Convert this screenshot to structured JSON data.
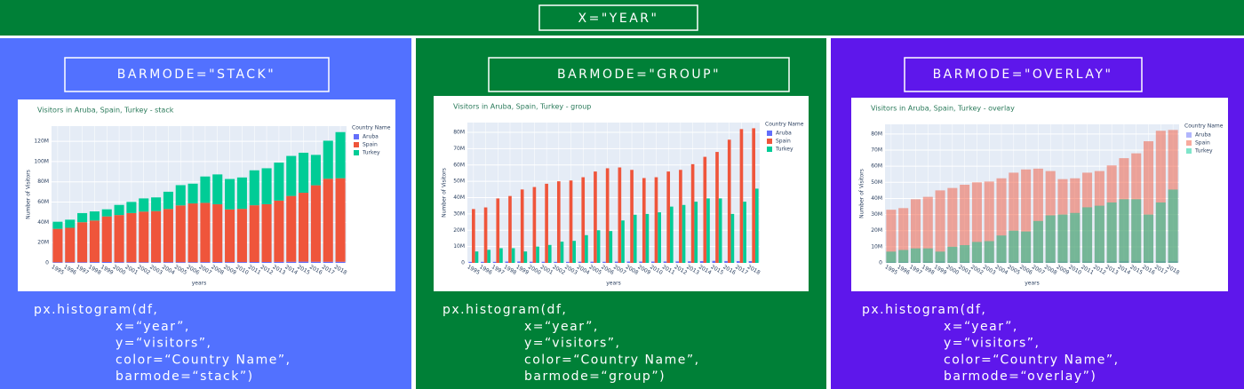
{
  "header": {
    "title": "X=\"YEAR\""
  },
  "panels": [
    {
      "title": "BARMODE=\"STACK\"",
      "code": [
        "px.histogram(df,",
        "x=“year”,",
        "y=“visitors”,",
        "color=“Country Name”,",
        "barmode=“stack”)"
      ]
    },
    {
      "title": "BARMODE=\"GROUP\"",
      "code": [
        "px.histogram(df,",
        "x=“year”,",
        "y=“visitors”,",
        "color=“Country Name”,",
        "barmode=“group”)"
      ]
    },
    {
      "title": "BARMODE=\"OVERLAY\"",
      "code": [
        "px.histogram(df,",
        "x=“year”,",
        "y=“visitors”,",
        "color=“Country Name”,",
        "barmode=“overlay”)"
      ]
    }
  ],
  "chart_data": [
    {
      "type": "bar",
      "barmode": "stack",
      "title": "Visitors in Aruba, Spain, Turkey - stack",
      "x_label": "years",
      "y_label": "Number of Visitors",
      "legend_title": "Country Name",
      "grid": true,
      "x": [
        1995,
        1996,
        1997,
        1998,
        1999,
        2000,
        2001,
        2002,
        2003,
        2004,
        2005,
        2006,
        2007,
        2008,
        2009,
        2010,
        2011,
        2012,
        2013,
        2014,
        2015,
        2016,
        2017,
        2018
      ],
      "xlim": [
        1994.5,
        2018.5
      ],
      "xticks": [
        1995,
        1996,
        1997,
        1998,
        1999,
        2000,
        2001,
        2002,
        2003,
        2004,
        2005,
        2006,
        2007,
        2008,
        2009,
        2010,
        2011,
        2012,
        2013,
        2014,
        2015,
        2016,
        2017,
        2018
      ],
      "ylim": [
        0,
        135000000
      ],
      "yticks": [
        0,
        {
          "value": 20000000,
          "label": "20M"
        },
        {
          "value": 40000000,
          "label": "40M"
        },
        {
          "value": 60000000,
          "label": "60M"
        },
        {
          "value": 80000000,
          "label": "80M"
        },
        {
          "value": 100000000,
          "label": "100M"
        },
        {
          "value": 120000000,
          "label": "120M"
        }
      ],
      "series": [
        {
          "name": "Aruba",
          "color": "#636efa",
          "values": [
            620000,
            640000,
            650000,
            810000,
            880000,
            720000,
            690000,
            640000,
            640000,
            730000,
            730000,
            690000,
            770000,
            830000,
            810000,
            820000,
            870000,
            900000,
            980000,
            1070000,
            1220000,
            1100000,
            1070000,
            1080000
          ]
        },
        {
          "name": "Spain",
          "color": "#ef553b",
          "values": [
            33000000,
            34000000,
            39500000,
            41000000,
            45000000,
            46500000,
            48500000,
            50000000,
            50500000,
            52500000,
            56000000,
            58000000,
            58500000,
            57000000,
            52000000,
            52500000,
            56000000,
            57000000,
            60500000,
            65000000,
            68000000,
            75500000,
            82000000,
            82500000
          ]
        },
        {
          "name": "Turkey",
          "color": "#00cc96",
          "values": [
            7000000,
            8000000,
            9000000,
            9000000,
            7000000,
            10000000,
            11000000,
            13000000,
            13500000,
            17000000,
            20000000,
            19500000,
            26000000,
            29500000,
            30000000,
            31000000,
            34500000,
            35500000,
            37500000,
            39500000,
            39500000,
            30000000,
            37500000,
            45500000
          ]
        }
      ]
    },
    {
      "type": "bar",
      "barmode": "group",
      "title": "Visitors in Aruba, Spain, Turkey - group",
      "x_label": "years",
      "y_label": "Number of Visitors",
      "legend_title": "Country Name",
      "grid": true,
      "x": [
        1995,
        1996,
        1997,
        1998,
        1999,
        2000,
        2001,
        2002,
        2003,
        2004,
        2005,
        2006,
        2007,
        2008,
        2009,
        2010,
        2011,
        2012,
        2013,
        2014,
        2015,
        2016,
        2017,
        2018
      ],
      "xlim": [
        1994.5,
        2018.5
      ],
      "xticks": [
        1995,
        1996,
        1997,
        1998,
        1999,
        2000,
        2001,
        2002,
        2003,
        2004,
        2005,
        2006,
        2007,
        2008,
        2009,
        2010,
        2011,
        2012,
        2013,
        2014,
        2015,
        2016,
        2017,
        2018
      ],
      "ylim": [
        0,
        86000000
      ],
      "yticks": [
        0,
        {
          "value": 10000000,
          "label": "10M"
        },
        {
          "value": 20000000,
          "label": "20M"
        },
        {
          "value": 30000000,
          "label": "30M"
        },
        {
          "value": 40000000,
          "label": "40M"
        },
        {
          "value": 50000000,
          "label": "50M"
        },
        {
          "value": 60000000,
          "label": "60M"
        },
        {
          "value": 70000000,
          "label": "70M"
        },
        {
          "value": 80000000,
          "label": "80M"
        }
      ],
      "series": [
        {
          "name": "Aruba",
          "color": "#636efa",
          "values": [
            620000,
            640000,
            650000,
            810000,
            880000,
            720000,
            690000,
            640000,
            640000,
            730000,
            730000,
            690000,
            770000,
            830000,
            810000,
            820000,
            870000,
            900000,
            980000,
            1070000,
            1220000,
            1100000,
            1070000,
            1080000
          ]
        },
        {
          "name": "Spain",
          "color": "#ef553b",
          "values": [
            33000000,
            34000000,
            39500000,
            41000000,
            45000000,
            46500000,
            48500000,
            50000000,
            50500000,
            52500000,
            56000000,
            58000000,
            58500000,
            57000000,
            52000000,
            52500000,
            56000000,
            57000000,
            60500000,
            65000000,
            68000000,
            75500000,
            82000000,
            82500000
          ]
        },
        {
          "name": "Turkey",
          "color": "#00cc96",
          "values": [
            7000000,
            8000000,
            9000000,
            9000000,
            7000000,
            10000000,
            11000000,
            13000000,
            13500000,
            17000000,
            20000000,
            19500000,
            26000000,
            29500000,
            30000000,
            31000000,
            34500000,
            35500000,
            37500000,
            39500000,
            39500000,
            30000000,
            37500000,
            45500000
          ]
        }
      ]
    },
    {
      "type": "bar",
      "barmode": "overlay",
      "opacity": 0.5,
      "title": "Visitors in Aruba, Spain, Turkey - overlay",
      "x_label": "years",
      "y_label": "Number of Visitors",
      "legend_title": "Country Name",
      "grid": true,
      "x": [
        1995,
        1996,
        1997,
        1998,
        1999,
        2000,
        2001,
        2002,
        2003,
        2004,
        2005,
        2006,
        2007,
        2008,
        2009,
        2010,
        2011,
        2012,
        2013,
        2014,
        2015,
        2016,
        2017,
        2018
      ],
      "xlim": [
        1994.5,
        2018.5
      ],
      "xticks": [
        1995,
        1996,
        1997,
        1998,
        1999,
        2000,
        2001,
        2002,
        2003,
        2004,
        2005,
        2006,
        2007,
        2008,
        2009,
        2010,
        2011,
        2012,
        2013,
        2014,
        2015,
        2016,
        2017,
        2018
      ],
      "ylim": [
        0,
        86000000
      ],
      "yticks": [
        0,
        {
          "value": 10000000,
          "label": "10M"
        },
        {
          "value": 20000000,
          "label": "20M"
        },
        {
          "value": 30000000,
          "label": "30M"
        },
        {
          "value": 40000000,
          "label": "40M"
        },
        {
          "value": 50000000,
          "label": "50M"
        },
        {
          "value": 60000000,
          "label": "60M"
        },
        {
          "value": 70000000,
          "label": "70M"
        },
        {
          "value": 80000000,
          "label": "80M"
        }
      ],
      "series": [
        {
          "name": "Aruba",
          "color": "#636efa",
          "values": [
            620000,
            640000,
            650000,
            810000,
            880000,
            720000,
            690000,
            640000,
            640000,
            730000,
            730000,
            690000,
            770000,
            830000,
            810000,
            820000,
            870000,
            900000,
            980000,
            1070000,
            1220000,
            1100000,
            1070000,
            1080000
          ]
        },
        {
          "name": "Spain",
          "color": "#ef553b",
          "values": [
            33000000,
            34000000,
            39500000,
            41000000,
            45000000,
            46500000,
            48500000,
            50000000,
            50500000,
            52500000,
            56000000,
            58000000,
            58500000,
            57000000,
            52000000,
            52500000,
            56000000,
            57000000,
            60500000,
            65000000,
            68000000,
            75500000,
            82000000,
            82500000
          ]
        },
        {
          "name": "Turkey",
          "color": "#00cc96",
          "values": [
            7000000,
            8000000,
            9000000,
            9000000,
            7000000,
            10000000,
            11000000,
            13000000,
            13500000,
            17000000,
            20000000,
            19500000,
            26000000,
            29500000,
            30000000,
            31000000,
            34500000,
            35500000,
            37500000,
            39500000,
            39500000,
            30000000,
            37500000,
            45500000
          ]
        }
      ]
    }
  ]
}
